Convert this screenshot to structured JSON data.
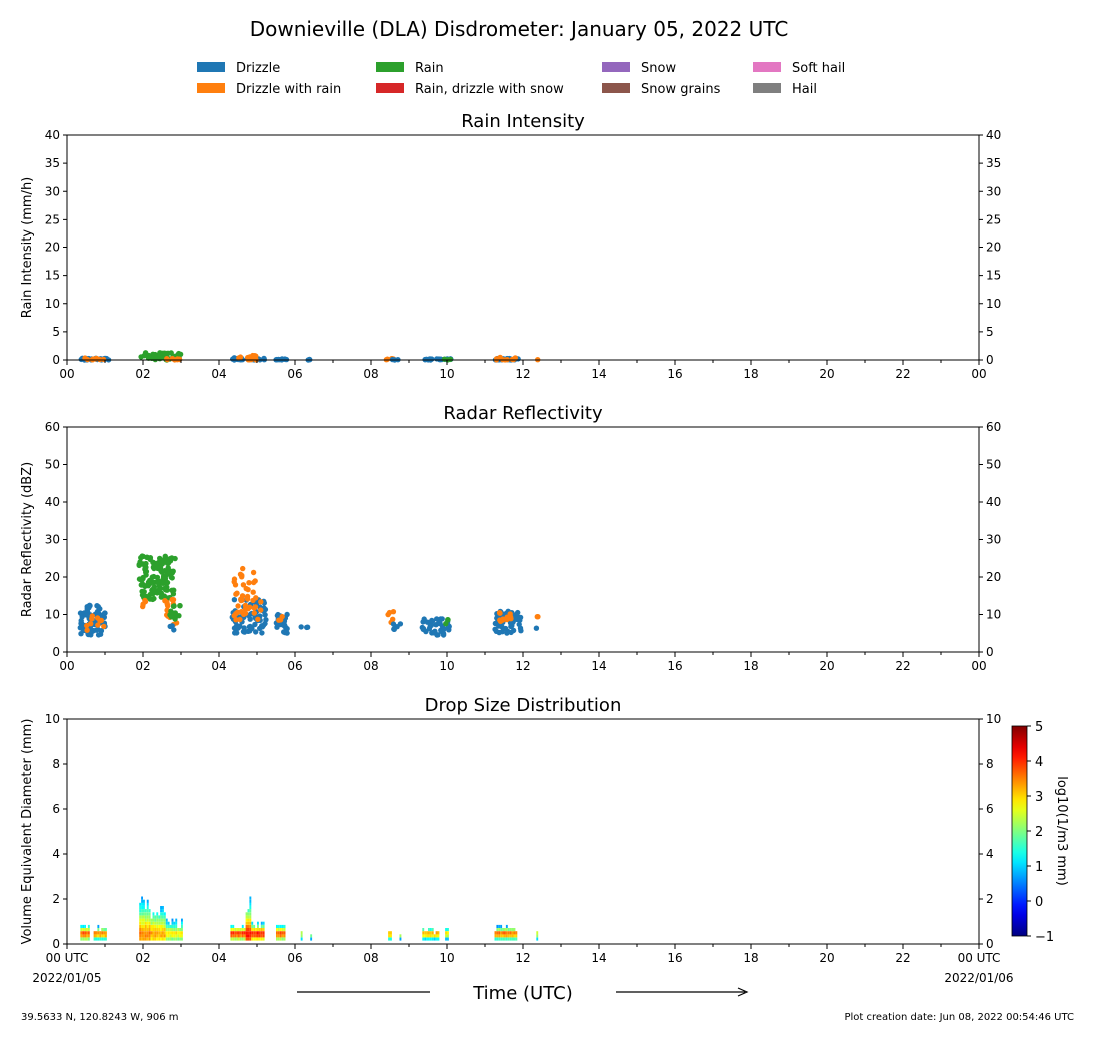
{
  "title": "Downieville (DLA) Disdrometer: January 05, 2022 UTC",
  "legend": [
    {
      "label": "Drizzle",
      "color": "#1f77b4"
    },
    {
      "label": "Drizzle with rain",
      "color": "#ff7f0e"
    },
    {
      "label": "Rain",
      "color": "#2ca02c"
    },
    {
      "label": "Rain, drizzle with snow",
      "color": "#d62728"
    },
    {
      "label": "Snow",
      "color": "#9467bd"
    },
    {
      "label": "Snow grains",
      "color": "#8c564b"
    },
    {
      "label": "Soft hail",
      "color": "#e377c2"
    },
    {
      "label": "Hail",
      "color": "#7f7f7f"
    }
  ],
  "xaxis": {
    "label": "Time (UTC)",
    "ticks": [
      "00",
      "02",
      "04",
      "06",
      "08",
      "10",
      "12",
      "14",
      "16",
      "18",
      "20",
      "22",
      "00"
    ],
    "bottom_ticks": [
      "00 UTC",
      "02",
      "04",
      "06",
      "08",
      "10",
      "12",
      "14",
      "16",
      "18",
      "20",
      "22",
      "00 UTC"
    ],
    "start_date": "2022/01/05",
    "end_date": "2022/01/06"
  },
  "footer": {
    "location": "39.5633 N, 120.8243 W, 906 m",
    "creation": "Plot creation date: Jun 08, 2022 00:54:46 UTC"
  },
  "chart_data": [
    {
      "type": "scatter",
      "title": "Rain Intensity",
      "ylabel": "Rain Intensity (mm/h)",
      "xlim": [
        0,
        24
      ],
      "ylim": [
        0,
        40
      ],
      "yticks": [
        "0",
        "5",
        "10",
        "15",
        "20",
        "25",
        "30",
        "35",
        "40"
      ],
      "clusters": [
        {
          "series": "Drizzle",
          "x": [
            0.35,
            1.1
          ],
          "y": [
            0,
            0.3
          ],
          "n": 30
        },
        {
          "series": "Drizzle with rain",
          "x": [
            0.4,
            1.0
          ],
          "y": [
            0,
            0.4
          ],
          "n": 10
        },
        {
          "series": "Rain",
          "x": [
            1.95,
            3.05
          ],
          "y": [
            0,
            1.3
          ],
          "n": 45
        },
        {
          "series": "Drizzle with rain",
          "x": [
            2.6,
            3.0
          ],
          "y": [
            0,
            0.3
          ],
          "n": 8
        },
        {
          "series": "Drizzle",
          "x": [
            4.35,
            5.2
          ],
          "y": [
            0,
            0.4
          ],
          "n": 25
        },
        {
          "series": "Drizzle with rain",
          "x": [
            4.5,
            5.0
          ],
          "y": [
            0,
            0.8
          ],
          "n": 18
        },
        {
          "series": "Drizzle",
          "x": [
            5.5,
            5.8
          ],
          "y": [
            0,
            0.2
          ],
          "n": 12
        },
        {
          "series": "Drizzle",
          "x": [
            6.2,
            6.4
          ],
          "y": [
            0,
            0.1
          ],
          "n": 3
        },
        {
          "series": "Drizzle with rain",
          "x": [
            8.4,
            8.6
          ],
          "y": [
            0,
            0.3
          ],
          "n": 5
        },
        {
          "series": "Drizzle",
          "x": [
            8.5,
            8.8
          ],
          "y": [
            0,
            0.1
          ],
          "n": 3
        },
        {
          "series": "Drizzle",
          "x": [
            9.35,
            10.1
          ],
          "y": [
            0,
            0.2
          ],
          "n": 20
        },
        {
          "series": "Rain",
          "x": [
            9.9,
            10.1
          ],
          "y": [
            0,
            0.2
          ],
          "n": 3
        },
        {
          "series": "Drizzle",
          "x": [
            11.25,
            11.9
          ],
          "y": [
            0,
            0.3
          ],
          "n": 25
        },
        {
          "series": "Drizzle with rain",
          "x": [
            11.3,
            11.8
          ],
          "y": [
            0,
            0.5
          ],
          "n": 10
        },
        {
          "series": "Drizzle with rain",
          "x": [
            12.35,
            12.4
          ],
          "y": [
            0,
            0.1
          ],
          "n": 1
        }
      ]
    },
    {
      "type": "scatter",
      "title": "Radar Reflectivity",
      "ylabel": "Radar Reflectivity (dBZ)",
      "xlim": [
        0,
        24
      ],
      "ylim": [
        0,
        60
      ],
      "yticks": [
        "0",
        "10",
        "20",
        "30",
        "40",
        "50",
        "60"
      ],
      "clusters": [
        {
          "series": "Drizzle",
          "x": [
            0.35,
            1.05
          ],
          "y": [
            4.5,
            12.5
          ],
          "n": 70
        },
        {
          "series": "Drizzle with rain",
          "x": [
            0.5,
            1.0
          ],
          "y": [
            5,
            10
          ],
          "n": 10
        },
        {
          "series": "Rain",
          "x": [
            1.9,
            2.85
          ],
          "y": [
            14,
            26
          ],
          "n": 130
        },
        {
          "series": "Drizzle with rain",
          "x": [
            1.9,
            2.1
          ],
          "y": [
            11,
            16
          ],
          "n": 4
        },
        {
          "series": "Drizzle with rain",
          "x": [
            2.55,
            2.9
          ],
          "y": [
            6,
            14
          ],
          "n": 15
        },
        {
          "series": "Rain",
          "x": [
            2.7,
            3.05
          ],
          "y": [
            7,
            13
          ],
          "n": 12
        },
        {
          "series": "Drizzle",
          "x": [
            2.7,
            2.85
          ],
          "y": [
            5.5,
            8
          ],
          "n": 3
        },
        {
          "series": "Drizzle",
          "x": [
            4.35,
            5.25
          ],
          "y": [
            5,
            14
          ],
          "n": 70
        },
        {
          "series": "Drizzle with rain",
          "x": [
            4.4,
            5.1
          ],
          "y": [
            7,
            23
          ],
          "n": 45
        },
        {
          "series": "Drizzle",
          "x": [
            5.5,
            5.8
          ],
          "y": [
            5,
            10
          ],
          "n": 25
        },
        {
          "series": "Drizzle with rain",
          "x": [
            5.55,
            5.7
          ],
          "y": [
            8,
            10
          ],
          "n": 3
        },
        {
          "series": "Drizzle",
          "x": [
            6.15,
            6.4
          ],
          "y": [
            6,
            7
          ],
          "n": 3
        },
        {
          "series": "Drizzle with rain",
          "x": [
            8.45,
            8.6
          ],
          "y": [
            7,
            11
          ],
          "n": 6
        },
        {
          "series": "Drizzle",
          "x": [
            8.5,
            8.8
          ],
          "y": [
            5.5,
            7.5
          ],
          "n": 5
        },
        {
          "series": "Drizzle",
          "x": [
            9.35,
            10.1
          ],
          "y": [
            4.5,
            9
          ],
          "n": 40
        },
        {
          "series": "Rain",
          "x": [
            9.95,
            10.05
          ],
          "y": [
            7.5,
            9
          ],
          "n": 3
        },
        {
          "series": "Drizzle",
          "x": [
            11.25,
            11.95
          ],
          "y": [
            5,
            11
          ],
          "n": 55
        },
        {
          "series": "Drizzle with rain",
          "x": [
            11.3,
            11.85
          ],
          "y": [
            7,
            10.5
          ],
          "n": 12
        },
        {
          "series": "Drizzle with rain",
          "x": [
            12.35,
            12.4
          ],
          "y": [
            8.5,
            9.5
          ],
          "n": 2
        },
        {
          "series": "Drizzle",
          "x": [
            12.35,
            12.4
          ],
          "y": [
            6,
            6.5
          ],
          "n": 1
        }
      ]
    },
    {
      "type": "heatmap",
      "title": "Drop Size Distribution",
      "ylabel": "Volume Equivalent Diameter (mm)",
      "xlim": [
        0,
        24
      ],
      "ylim": [
        0,
        10
      ],
      "yticks": [
        "0",
        "2",
        "4",
        "6",
        "8",
        "10"
      ],
      "colorbar": {
        "label": "log10(1/m3 mm)",
        "range": [
          -1,
          5
        ],
        "ticks": [
          "−1",
          "0",
          "1",
          "2",
          "3",
          "4",
          "5"
        ]
      },
      "columns": [
        {
          "x0": 0.35,
          "x1": 0.6,
          "top": 0.9,
          "peak": 4.3
        },
        {
          "x0": 0.7,
          "x1": 1.05,
          "top": 0.8,
          "peak": 4.2
        },
        {
          "x0": 1.9,
          "x1": 2.2,
          "top": 2.2,
          "peak": 3.8
        },
        {
          "x0": 2.2,
          "x1": 2.6,
          "top": 1.8,
          "peak": 3.6
        },
        {
          "x0": 2.6,
          "x1": 3.05,
          "top": 1.1,
          "peak": 3.2
        },
        {
          "x0": 4.3,
          "x1": 4.7,
          "top": 0.9,
          "peak": 4.5
        },
        {
          "x0": 4.7,
          "x1": 4.85,
          "top": 2.1,
          "peak": 4.5
        },
        {
          "x0": 4.85,
          "x1": 5.2,
          "top": 1.0,
          "peak": 4.6
        },
        {
          "x0": 5.5,
          "x1": 5.75,
          "top": 0.9,
          "peak": 4.4
        },
        {
          "x0": 6.15,
          "x1": 6.2,
          "top": 0.7,
          "peak": 3.0
        },
        {
          "x0": 6.4,
          "x1": 6.45,
          "top": 0.5,
          "peak": 3.0
        },
        {
          "x0": 8.45,
          "x1": 8.55,
          "top": 0.8,
          "peak": 3.8
        },
        {
          "x0": 8.75,
          "x1": 8.8,
          "top": 0.5,
          "peak": 3.0
        },
        {
          "x0": 9.35,
          "x1": 9.8,
          "top": 0.7,
          "peak": 4.0
        },
        {
          "x0": 9.95,
          "x1": 10.05,
          "top": 0.7,
          "peak": 3.5
        },
        {
          "x0": 11.25,
          "x1": 11.6,
          "top": 0.8,
          "peak": 4.3
        },
        {
          "x0": 11.6,
          "x1": 11.85,
          "top": 0.8,
          "peak": 4.2
        },
        {
          "x0": 12.35,
          "x1": 12.4,
          "top": 0.8,
          "peak": 3.0
        }
      ]
    }
  ]
}
